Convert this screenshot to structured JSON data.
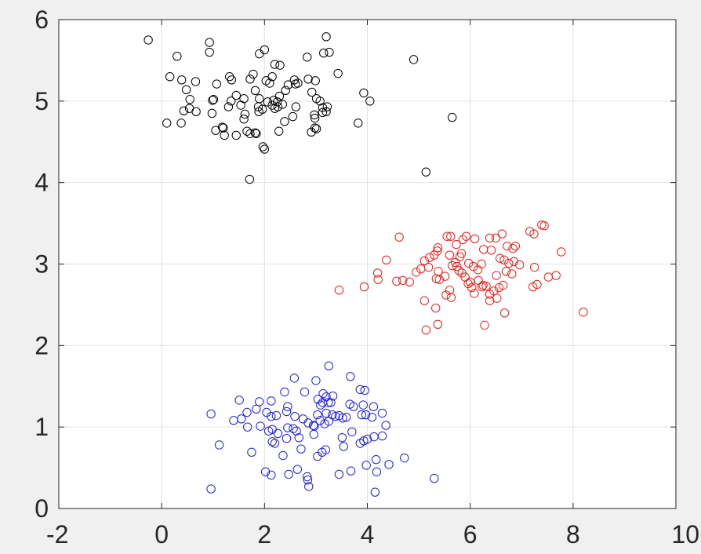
{
  "chart_data": {
    "type": "scatter",
    "title": "",
    "xlabel": "",
    "ylabel": "",
    "xlim": [
      -2,
      10
    ],
    "ylim": [
      0,
      6
    ],
    "grid": true,
    "marker": "open-circle",
    "xticks": [
      -2,
      0,
      2,
      4,
      6,
      8,
      10
    ],
    "yticks": [
      0,
      1,
      2,
      3,
      4,
      5,
      6
    ],
    "xtick_labels": [
      "-2",
      "0",
      "2",
      "4",
      "6",
      "8",
      "10"
    ],
    "ytick_labels": [
      "0",
      "1",
      "2",
      "3",
      "4",
      "5",
      "6"
    ],
    "series": [
      {
        "color": "#000000",
        "points": [
          [
            -0.26,
            5.75
          ],
          [
            0.3,
            5.55
          ],
          [
            0.93,
            5.72
          ],
          [
            0.93,
            5.6
          ],
          [
            1.78,
            5.33
          ],
          [
            2.0,
            5.63
          ],
          [
            2.2,
            5.45
          ],
          [
            2.3,
            5.44
          ],
          [
            1.9,
            5.58
          ],
          [
            2.83,
            5.54
          ],
          [
            3.15,
            5.59
          ],
          [
            3.26,
            5.6
          ],
          [
            3.2,
            5.79
          ],
          [
            3.43,
            5.34
          ],
          [
            4.9,
            5.51
          ],
          [
            0.16,
            5.3
          ],
          [
            0.39,
            5.26
          ],
          [
            0.48,
            5.14
          ],
          [
            0.55,
            5.02
          ],
          [
            0.66,
            5.24
          ],
          [
            0.99,
            5.01
          ],
          [
            1.01,
            5.02
          ],
          [
            1.07,
            5.21
          ],
          [
            1.32,
            5.3
          ],
          [
            1.36,
            5.26
          ],
          [
            1.35,
            5.0
          ],
          [
            1.45,
            5.07
          ],
          [
            1.54,
            4.95
          ],
          [
            1.6,
            5.03
          ],
          [
            1.72,
            5.27
          ],
          [
            1.82,
            5.13
          ],
          [
            1.9,
            5.03
          ],
          [
            1.88,
            4.93
          ],
          [
            2.03,
            5.25
          ],
          [
            2.06,
            4.99
          ],
          [
            2.1,
            5.22
          ],
          [
            2.15,
            5.3
          ],
          [
            2.18,
            5.01
          ],
          [
            2.25,
            4.99
          ],
          [
            2.29,
            5.06
          ],
          [
            2.35,
            4.96
          ],
          [
            2.41,
            5.13
          ],
          [
            2.46,
            5.2
          ],
          [
            2.58,
            5.26
          ],
          [
            2.6,
            5.21
          ],
          [
            2.65,
            5.22
          ],
          [
            2.85,
            5.27
          ],
          [
            2.92,
            5.11
          ],
          [
            2.99,
            5.25
          ],
          [
            3.01,
            5.03
          ],
          [
            3.08,
            5.0
          ],
          [
            3.13,
            4.92
          ],
          [
            3.22,
            4.93
          ],
          [
            3.93,
            5.1
          ],
          [
            4.05,
            5.0
          ],
          [
            0.1,
            4.73
          ],
          [
            0.38,
            4.73
          ],
          [
            0.43,
            4.88
          ],
          [
            0.54,
            4.91
          ],
          [
            0.67,
            4.87
          ],
          [
            0.98,
            4.85
          ],
          [
            1.05,
            4.64
          ],
          [
            1.18,
            4.68
          ],
          [
            1.2,
            4.67
          ],
          [
            1.22,
            4.58
          ],
          [
            1.3,
            4.93
          ],
          [
            1.45,
            4.58
          ],
          [
            1.6,
            4.78
          ],
          [
            1.62,
            4.84
          ],
          [
            1.66,
            4.63
          ],
          [
            1.72,
            4.6
          ],
          [
            1.82,
            4.61
          ],
          [
            1.84,
            4.6
          ],
          [
            1.89,
            4.87
          ],
          [
            1.96,
            4.9
          ],
          [
            2.15,
            4.95
          ],
          [
            2.2,
            4.91
          ],
          [
            2.26,
            4.93
          ],
          [
            2.28,
            4.63
          ],
          [
            2.39,
            4.75
          ],
          [
            2.55,
            4.81
          ],
          [
            2.61,
            4.93
          ],
          [
            2.98,
            4.79
          ],
          [
            2.97,
            4.83
          ],
          [
            3.13,
            4.86
          ],
          [
            3.2,
            4.87
          ],
          [
            2.91,
            4.62
          ],
          [
            2.98,
            4.67
          ],
          [
            3.01,
            4.66
          ],
          [
            3.82,
            4.73
          ],
          [
            5.65,
            4.8
          ],
          [
            1.97,
            4.44
          ],
          [
            2.0,
            4.41
          ],
          [
            1.71,
            4.04
          ],
          [
            5.14,
            4.13
          ]
        ]
      },
      {
        "color": "#e8201a",
        "points": [
          [
            4.62,
            3.33
          ],
          [
            5.55,
            3.34
          ],
          [
            5.62,
            3.34
          ],
          [
            5.73,
            3.24
          ],
          [
            5.86,
            3.3
          ],
          [
            5.92,
            3.34
          ],
          [
            6.09,
            3.31
          ],
          [
            6.38,
            3.32
          ],
          [
            6.5,
            3.32
          ],
          [
            6.62,
            3.37
          ],
          [
            6.72,
            3.22
          ],
          [
            6.83,
            3.19
          ],
          [
            6.88,
            3.22
          ],
          [
            7.16,
            3.4
          ],
          [
            7.24,
            3.37
          ],
          [
            7.39,
            3.48
          ],
          [
            7.44,
            3.47
          ],
          [
            7.77,
            3.15
          ],
          [
            4.37,
            3.05
          ],
          [
            5.21,
            3.08
          ],
          [
            5.3,
            3.11
          ],
          [
            5.36,
            3.16
          ],
          [
            5.37,
            3.2
          ],
          [
            5.6,
            3.11
          ],
          [
            5.71,
            3.02
          ],
          [
            5.8,
            3.09
          ],
          [
            5.83,
            3.13
          ],
          [
            5.97,
            3.01
          ],
          [
            6.06,
            2.97
          ],
          [
            6.15,
            2.93
          ],
          [
            6.22,
            3.0
          ],
          [
            6.26,
            3.18
          ],
          [
            6.41,
            3.17
          ],
          [
            6.58,
            3.07
          ],
          [
            6.66,
            3.05
          ],
          [
            6.75,
            3.01
          ],
          [
            6.85,
            3.03
          ],
          [
            6.96,
            2.99
          ],
          [
            7.25,
            2.96
          ],
          [
            4.2,
            2.89
          ],
          [
            4.21,
            2.81
          ],
          [
            4.57,
            2.79
          ],
          [
            4.69,
            2.8
          ],
          [
            4.82,
            2.78
          ],
          [
            4.95,
            2.9
          ],
          [
            5.04,
            2.94
          ],
          [
            5.11,
            3.04
          ],
          [
            5.19,
            2.96
          ],
          [
            5.34,
            2.82
          ],
          [
            5.4,
            2.81
          ],
          [
            5.38,
            2.91
          ],
          [
            5.51,
            2.85
          ],
          [
            5.6,
            2.68
          ],
          [
            5.65,
            2.98
          ],
          [
            5.74,
            2.97
          ],
          [
            5.78,
            2.92
          ],
          [
            5.84,
            2.89
          ],
          [
            5.9,
            2.84
          ],
          [
            5.96,
            2.76
          ],
          [
            6.0,
            2.78
          ],
          [
            6.03,
            2.71
          ],
          [
            6.08,
            2.64
          ],
          [
            6.16,
            2.8
          ],
          [
            6.23,
            2.72
          ],
          [
            6.25,
            2.74
          ],
          [
            6.31,
            2.73
          ],
          [
            6.38,
            2.63
          ],
          [
            6.46,
            2.67
          ],
          [
            6.51,
            2.86
          ],
          [
            6.56,
            2.71
          ],
          [
            6.64,
            2.74
          ],
          [
            6.7,
            2.91
          ],
          [
            6.81,
            2.88
          ],
          [
            7.22,
            2.72
          ],
          [
            7.3,
            2.75
          ],
          [
            7.52,
            2.84
          ],
          [
            7.67,
            2.86
          ],
          [
            3.45,
            2.68
          ],
          [
            3.94,
            2.72
          ],
          [
            5.11,
            2.55
          ],
          [
            5.53,
            2.62
          ],
          [
            5.63,
            2.59
          ],
          [
            6.38,
            2.55
          ],
          [
            6.52,
            2.58
          ],
          [
            6.67,
            2.4
          ],
          [
            8.2,
            2.41
          ],
          [
            5.33,
            2.46
          ],
          [
            5.37,
            2.26
          ],
          [
            5.14,
            2.19
          ],
          [
            6.28,
            2.25
          ]
        ]
      },
      {
        "color": "#1f1fdc",
        "points": [
          [
            3.25,
            1.75
          ],
          [
            3.67,
            1.62
          ],
          [
            3.0,
            1.57
          ],
          [
            2.58,
            1.6
          ],
          [
            3.86,
            1.46
          ],
          [
            3.95,
            1.45
          ],
          [
            2.39,
            1.43
          ],
          [
            2.78,
            1.43
          ],
          [
            3.14,
            1.41
          ],
          [
            3.2,
            1.37
          ],
          [
            3.33,
            1.38
          ],
          [
            1.51,
            1.33
          ],
          [
            1.9,
            1.31
          ],
          [
            2.13,
            1.32
          ],
          [
            2.45,
            1.25
          ],
          [
            3.04,
            1.34
          ],
          [
            3.09,
            1.27
          ],
          [
            3.13,
            1.3
          ],
          [
            3.24,
            1.3
          ],
          [
            3.29,
            1.3
          ],
          [
            3.66,
            1.28
          ],
          [
            3.73,
            1.25
          ],
          [
            3.92,
            1.27
          ],
          [
            4.12,
            1.25
          ],
          [
            4.29,
            1.17
          ],
          [
            0.96,
            1.16
          ],
          [
            1.55,
            1.1
          ],
          [
            1.66,
            1.18
          ],
          [
            1.84,
            1.22
          ],
          [
            2.04,
            1.18
          ],
          [
            2.13,
            1.13
          ],
          [
            2.23,
            1.14
          ],
          [
            2.43,
            1.19
          ],
          [
            2.59,
            1.13
          ],
          [
            2.75,
            1.1
          ],
          [
            2.85,
            1.05
          ],
          [
            2.95,
            1.02
          ],
          [
            3.03,
            1.15
          ],
          [
            3.08,
            1.08
          ],
          [
            3.2,
            1.17
          ],
          [
            3.32,
            1.15
          ],
          [
            3.38,
            1.13
          ],
          [
            3.45,
            1.14
          ],
          [
            3.52,
            1.11
          ],
          [
            3.59,
            1.12
          ],
          [
            3.89,
            1.15
          ],
          [
            3.97,
            1.15
          ],
          [
            4.09,
            1.12
          ],
          [
            4.36,
            1.02
          ],
          [
            1.4,
            1.08
          ],
          [
            1.67,
            1.0
          ],
          [
            1.92,
            1.01
          ],
          [
            2.08,
            0.95
          ],
          [
            2.15,
            0.97
          ],
          [
            2.26,
            0.92
          ],
          [
            2.45,
            0.99
          ],
          [
            2.56,
            0.98
          ],
          [
            2.62,
            0.95
          ],
          [
            2.96,
            0.91
          ],
          [
            2.97,
            1.01
          ],
          [
            3.17,
            1.04
          ],
          [
            3.25,
            1.07
          ],
          [
            3.51,
            0.87
          ],
          [
            3.7,
            0.94
          ],
          [
            3.86,
            0.8
          ],
          [
            3.93,
            0.83
          ],
          [
            4.0,
            0.85
          ],
          [
            4.13,
            0.88
          ],
          [
            4.29,
            0.89
          ],
          [
            1.12,
            0.78
          ],
          [
            1.75,
            0.69
          ],
          [
            2.15,
            0.82
          ],
          [
            2.2,
            0.8
          ],
          [
            2.36,
            0.65
          ],
          [
            2.43,
            0.86
          ],
          [
            2.67,
            0.87
          ],
          [
            2.71,
            0.73
          ],
          [
            3.03,
            0.64
          ],
          [
            3.12,
            0.69
          ],
          [
            3.19,
            0.72
          ],
          [
            3.54,
            0.76
          ],
          [
            4.17,
            0.6
          ],
          [
            4.72,
            0.62
          ],
          [
            0.96,
            0.24
          ],
          [
            2.02,
            0.45
          ],
          [
            2.13,
            0.41
          ],
          [
            2.47,
            0.42
          ],
          [
            2.64,
            0.48
          ],
          [
            2.83,
            0.39
          ],
          [
            2.84,
            0.35
          ],
          [
            2.86,
            0.27
          ],
          [
            3.45,
            0.42
          ],
          [
            3.68,
            0.46
          ],
          [
            3.98,
            0.53
          ],
          [
            4.18,
            0.45
          ],
          [
            4.42,
            0.54
          ],
          [
            5.3,
            0.37
          ],
          [
            4.15,
            0.2
          ]
        ]
      }
    ]
  }
}
